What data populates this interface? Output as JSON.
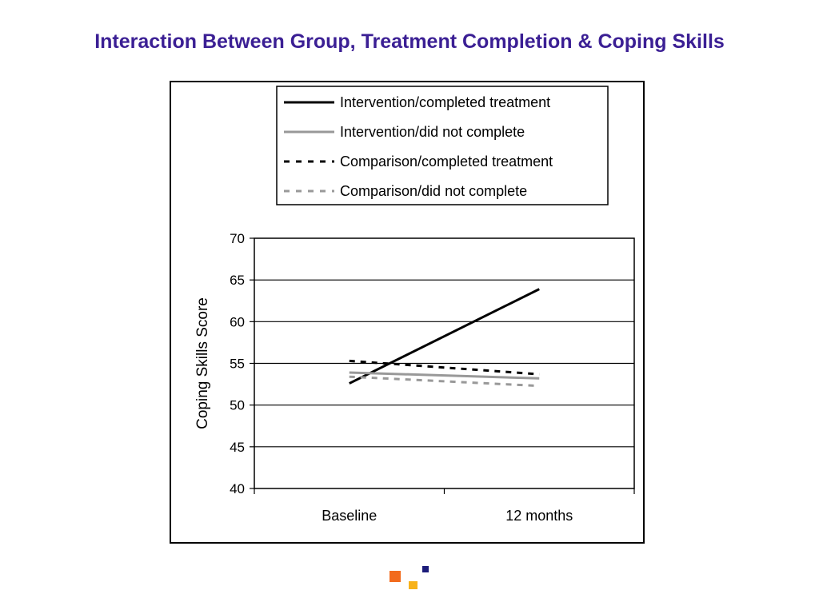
{
  "slide": {
    "title": "Interaction Between Group, Treatment Completion & Coping Skills"
  },
  "chart_data": {
    "type": "line",
    "title": "",
    "xlabel": "",
    "ylabel": "Coping Skills Score",
    "categories": [
      "Baseline",
      "12 months"
    ],
    "ylim": [
      40,
      70
    ],
    "yticks": [
      40,
      45,
      50,
      55,
      60,
      65,
      70
    ],
    "grid": true,
    "legend_position": "top",
    "series": [
      {
        "name": "Intervention/completed treatment",
        "values": [
          52.6,
          63.9
        ],
        "color": "#000000",
        "dash": "solid"
      },
      {
        "name": "Intervention/did not complete",
        "values": [
          53.9,
          53.2
        ],
        "color": "#999999",
        "dash": "solid"
      },
      {
        "name": "Comparison/completed treatment",
        "values": [
          55.3,
          53.7
        ],
        "color": "#000000",
        "dash": "dashed"
      },
      {
        "name": "Comparison/did not complete",
        "values": [
          53.4,
          52.3
        ],
        "color": "#999999",
        "dash": "dashed"
      }
    ]
  },
  "decoration": {
    "colors": [
      "#f26b1d",
      "#f7b21a",
      "#1c1c7a"
    ]
  }
}
